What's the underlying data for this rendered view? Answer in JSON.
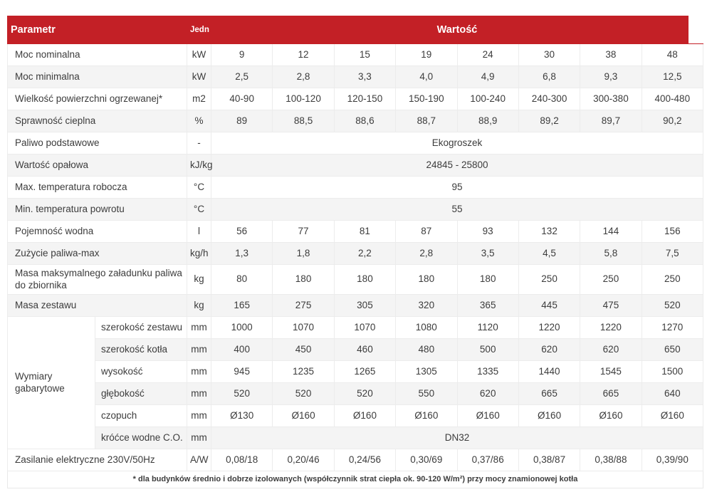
{
  "colors": {
    "header_bg": "#c32026",
    "header_text": "#ffffff",
    "row_alt_bg": "#f4f4f4",
    "border": "#ececec",
    "text": "#3c3c3c"
  },
  "table": {
    "header": {
      "param": "Parametr",
      "unit": "Jedn",
      "value": "Wartość"
    },
    "rows": [
      {
        "label": "Moc nominalna",
        "unit": "kW",
        "values": [
          "9",
          "12",
          "15",
          "19",
          "24",
          "30",
          "38",
          "48"
        ]
      },
      {
        "label": "Moc minimalna",
        "unit": "kW",
        "values": [
          "2,5",
          "2,8",
          "3,3",
          "4,0",
          "4,9",
          "6,8",
          "9,3",
          "12,5"
        ]
      },
      {
        "label": "Wielkość powierzchni ogrzewanej*",
        "unit": "m2",
        "values": [
          "40-90",
          "100-120",
          "120-150",
          "150-190",
          "100-240",
          "240-300",
          "300-380",
          "400-480"
        ]
      },
      {
        "label": "Sprawność cieplna",
        "unit": "%",
        "values": [
          "89",
          "88,5",
          "88,6",
          "88,7",
          "88,9",
          "89,2",
          "89,7",
          "90,2"
        ]
      },
      {
        "label": "Paliwo podstawowe",
        "unit": "-",
        "span": "Ekogroszek"
      },
      {
        "label": "Wartość opałowa",
        "unit": "kJ/kg",
        "span": "24845 - 25800"
      },
      {
        "label": "Max. temperatura robocza",
        "unit": "°C",
        "span": "95"
      },
      {
        "label": "Min. temperatura powrotu",
        "unit": "°C",
        "span": "55"
      },
      {
        "label": "Pojemność wodna",
        "unit": "l",
        "values": [
          "56",
          "77",
          "81",
          "87",
          "93",
          "132",
          "144",
          "156"
        ]
      },
      {
        "label": "Zużycie paliwa-max",
        "unit": "kg/h",
        "values": [
          "1,3",
          "1,8",
          "2,2",
          "2,8",
          "3,5",
          "4,5",
          "5,8",
          "7,5"
        ]
      },
      {
        "label": "Masa maksymalnego załadunku paliwa do zbiornika",
        "unit": "kg",
        "values": [
          "80",
          "180",
          "180",
          "180",
          "180",
          "250",
          "250",
          "250"
        ]
      },
      {
        "label": "Masa zestawu",
        "unit": "kg",
        "values": [
          "165",
          "275",
          "305",
          "320",
          "365",
          "445",
          "475",
          "520"
        ]
      }
    ],
    "dims": {
      "label": "Wymiary gabarytowe",
      "rows": [
        {
          "sublabel": "szerokość zestawu",
          "unit": "mm",
          "values": [
            "1000",
            "1070",
            "1070",
            "1080",
            "1120",
            "1220",
            "1220",
            "1270"
          ]
        },
        {
          "sublabel": "szerokość kotła",
          "unit": "mm",
          "values": [
            "400",
            "450",
            "460",
            "480",
            "500",
            "620",
            "620",
            "650"
          ]
        },
        {
          "sublabel": "wysokość",
          "unit": "mm",
          "values": [
            "945",
            "1235",
            "1265",
            "1305",
            "1335",
            "1440",
            "1545",
            "1500"
          ]
        },
        {
          "sublabel": "głębokość",
          "unit": "mm",
          "values": [
            "520",
            "520",
            "520",
            "550",
            "620",
            "665",
            "665",
            "640"
          ]
        },
        {
          "sublabel": "czopuch",
          "unit": "mm",
          "values": [
            "Ø130",
            "Ø160",
            "Ø160",
            "Ø160",
            "Ø160",
            "Ø160",
            "Ø160",
            "Ø160"
          ]
        },
        {
          "sublabel": "króćce wodne C.O.",
          "unit": "mm",
          "span": "DN32"
        }
      ]
    },
    "power": {
      "label": "Zasilanie elektryczne 230V/50Hz",
      "unit": "A/W",
      "values": [
        "0,08/18",
        "0,20/46",
        "0,24/56",
        "0,30/69",
        "0,37/86",
        "0,38/87",
        "0,38/88",
        "0,39/90"
      ]
    },
    "footnote": "* dla budynków średnio i dobrze izolowanych (współczynnik strat ciepła ok. 90-120 W/m²) przy mocy znamionowej kotła"
  }
}
